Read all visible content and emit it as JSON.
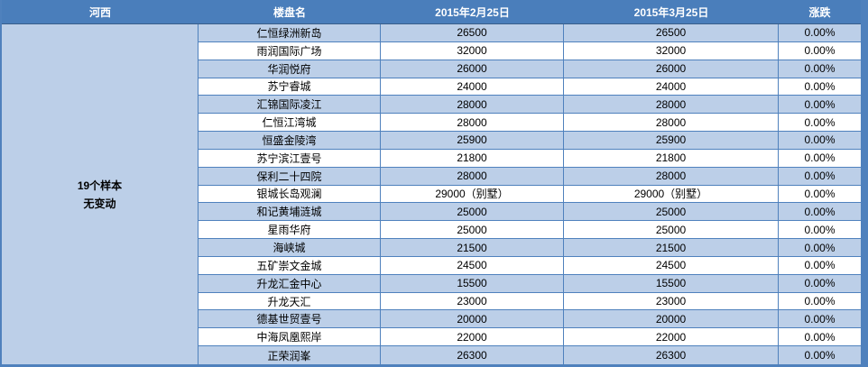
{
  "table": {
    "headers": {
      "region": "河西",
      "property_name": "楼盘名",
      "date1": "2015年2月25日",
      "date2": "2015年3月25日",
      "change": "涨跌"
    },
    "region_summary": {
      "sample_count": "19个样本",
      "change_status": "无变动"
    },
    "rows": [
      {
        "name": "仁恒绿洲新岛",
        "price1": "26500",
        "price2": "26500",
        "change": "0.00%"
      },
      {
        "name": "雨润国际广场",
        "price1": "32000",
        "price2": "32000",
        "change": "0.00%"
      },
      {
        "name": "华润悦府",
        "price1": "26000",
        "price2": "26000",
        "change": "0.00%"
      },
      {
        "name": "苏宁睿城",
        "price1": "24000",
        "price2": "24000",
        "change": "0.00%"
      },
      {
        "name": "汇锦国际凌江",
        "price1": "28000",
        "price2": "28000",
        "change": "0.00%"
      },
      {
        "name": "仁恒江湾城",
        "price1": "28000",
        "price2": "28000",
        "change": "0.00%"
      },
      {
        "name": "恒盛金陵湾",
        "price1": "25900",
        "price2": "25900",
        "change": "0.00%"
      },
      {
        "name": "苏宁滨江壹号",
        "price1": "21800",
        "price2": "21800",
        "change": "0.00%"
      },
      {
        "name": "保利二十四院",
        "price1": "28000",
        "price2": "28000",
        "change": "0.00%"
      },
      {
        "name": "银城长岛观澜",
        "price1": "29000（别墅）",
        "price2": "29000（别墅）",
        "change": "0.00%"
      },
      {
        "name": "和记黄埔涟城",
        "price1": "25000",
        "price2": "25000",
        "change": "0.00%"
      },
      {
        "name": "星雨华府",
        "price1": "25000",
        "price2": "25000",
        "change": "0.00%"
      },
      {
        "name": "海峡城",
        "price1": "21500",
        "price2": "21500",
        "change": "0.00%"
      },
      {
        "name": "五矿崇文金城",
        "price1": "24500",
        "price2": "24500",
        "change": "0.00%"
      },
      {
        "name": "升龙汇金中心",
        "price1": "15500",
        "price2": "15500",
        "change": "0.00%"
      },
      {
        "name": "升龙天汇",
        "price1": "23000",
        "price2": "23000",
        "change": "0.00%"
      },
      {
        "name": "德基世贸壹号",
        "price1": "20000",
        "price2": "20000",
        "change": "0.00%"
      },
      {
        "name": "中海凤凰熙岸",
        "price1": "22000",
        "price2": "22000",
        "change": "0.00%"
      },
      {
        "name": "正荣润峯",
        "price1": "26300",
        "price2": "26300",
        "change": "0.00%"
      }
    ],
    "colors": {
      "header_bg": "#4a7ebb",
      "header_text": "#ffffff",
      "header_border": "#385d8a",
      "row_alt_bg": "#bccfe8",
      "row_bg": "#ffffff",
      "border": "#4f81bd",
      "border_strong": "#4f81bd",
      "body_text": "#000000"
    }
  }
}
